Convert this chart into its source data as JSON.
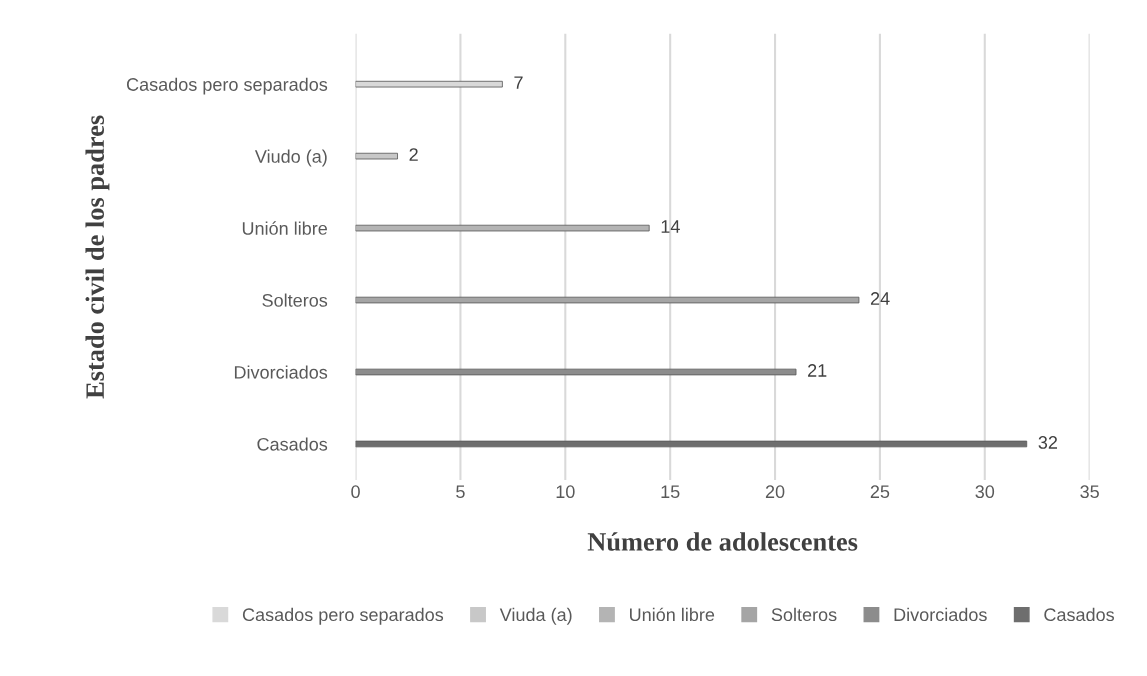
{
  "chart_data": {
    "type": "bar",
    "orientation": "horizontal",
    "xlabel": "Número de adolescentes",
    "ylabel": "Estado civil de los padres",
    "categories": [
      "Casados pero separados",
      "Viudo (a)",
      "Unión libre",
      "Solteros",
      "Divorciados",
      "Casados"
    ],
    "series": [
      {
        "name": "Casados pero separados",
        "color": "#d9d9d9",
        "values": [
          7,
          null,
          null,
          null,
          null,
          null
        ]
      },
      {
        "name": "Viuda (a)",
        "color": "#c8c8c8",
        "values": [
          null,
          2,
          null,
          null,
          null,
          null
        ]
      },
      {
        "name": "Unión libre",
        "color": "#b4b4b4",
        "values": [
          null,
          null,
          14,
          null,
          null,
          null
        ]
      },
      {
        "name": "Solteros",
        "color": "#a5a5a5",
        "values": [
          null,
          null,
          null,
          24,
          null,
          null
        ]
      },
      {
        "name": "Divorciados",
        "color": "#8c8c8c",
        "values": [
          null,
          null,
          null,
          null,
          21,
          null
        ]
      },
      {
        "name": "Casados",
        "color": "#6e6e6e",
        "values": [
          null,
          null,
          null,
          null,
          null,
          32
        ]
      }
    ],
    "xlim": [
      0,
      35
    ],
    "xticks": [
      0,
      5,
      10,
      15,
      20,
      25,
      30,
      35
    ],
    "grid": "x",
    "legend": "bottom",
    "data_labels": true
  }
}
